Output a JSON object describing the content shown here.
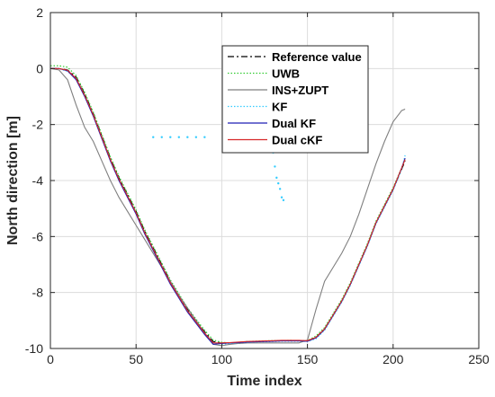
{
  "chart_data": {
    "type": "line",
    "title": "",
    "xlabel": "Time index",
    "ylabel": "North direction [m]",
    "xlim": [
      0,
      250
    ],
    "ylim": [
      -10,
      2
    ],
    "xticks": [
      0,
      50,
      100,
      150,
      200,
      250
    ],
    "yticks": [
      -10,
      -8,
      -6,
      -4,
      -2,
      0,
      2
    ],
    "grid": true,
    "legend_position": "top-right",
    "series": [
      {
        "name": "Reference value",
        "color": "#000000",
        "style": "dashdot",
        "x": [
          0,
          5,
          10,
          15,
          20,
          25,
          30,
          35,
          40,
          45,
          50,
          55,
          60,
          65,
          70,
          75,
          80,
          85,
          90,
          95,
          100,
          105,
          110,
          115,
          120,
          125,
          130,
          135,
          140,
          145,
          150,
          155,
          160,
          165,
          170,
          175,
          180,
          185,
          190,
          195,
          200,
          205,
          207
        ],
        "y": [
          0.0,
          0.0,
          -0.05,
          -0.3,
          -0.9,
          -1.6,
          -2.4,
          -3.2,
          -3.9,
          -4.5,
          -5.1,
          -5.8,
          -6.4,
          -7.0,
          -7.6,
          -8.1,
          -8.6,
          -9.0,
          -9.4,
          -9.75,
          -9.8,
          -9.8,
          -9.78,
          -9.76,
          -9.75,
          -9.74,
          -9.73,
          -9.72,
          -9.72,
          -9.72,
          -9.73,
          -9.6,
          -9.3,
          -8.8,
          -8.3,
          -7.7,
          -7.0,
          -6.3,
          -5.5,
          -4.9,
          -4.3,
          -3.6,
          -3.3
        ]
      },
      {
        "name": "UWB",
        "color": "#33cc33",
        "style": "dotted",
        "x": [
          0,
          5,
          10,
          15,
          20,
          25,
          30,
          35,
          40,
          45,
          50,
          55,
          60,
          65,
          70,
          75,
          80,
          85,
          90,
          95,
          100,
          105,
          110,
          115,
          120,
          125,
          130,
          135,
          140,
          145,
          150,
          155,
          160,
          165,
          170,
          175,
          180,
          185,
          190,
          195,
          200,
          205,
          207
        ],
        "y": [
          0.1,
          0.1,
          0.05,
          -0.25,
          -0.85,
          -1.55,
          -2.35,
          -3.15,
          -3.85,
          -4.45,
          -5.05,
          -5.75,
          -6.35,
          -6.95,
          -7.55,
          -8.05,
          -8.55,
          -8.95,
          -9.35,
          -9.7,
          -9.78,
          -9.8,
          -9.78,
          -9.75,
          -9.74,
          -9.73,
          -9.72,
          -9.72,
          -9.71,
          -9.72,
          -9.72,
          -9.55,
          -9.25,
          -8.75,
          -8.25,
          -7.65,
          -6.95,
          -6.25,
          -5.45,
          -4.85,
          -4.25,
          -3.55,
          -3.25
        ]
      },
      {
        "name": "INS+ZUPT",
        "color": "#7f7f7f",
        "style": "solid",
        "x": [
          0,
          5,
          10,
          15,
          20,
          25,
          30,
          35,
          40,
          45,
          50,
          55,
          60,
          65,
          70,
          75,
          80,
          85,
          90,
          95,
          100,
          105,
          110,
          115,
          120,
          125,
          130,
          135,
          140,
          145,
          150,
          155,
          160,
          165,
          170,
          175,
          180,
          185,
          190,
          195,
          200,
          205,
          207
        ],
        "y": [
          0.0,
          -0.05,
          -0.4,
          -1.3,
          -2.1,
          -2.6,
          -3.3,
          -4.0,
          -4.6,
          -5.1,
          -5.6,
          -6.1,
          -6.6,
          -7.1,
          -7.6,
          -8.1,
          -8.55,
          -9.0,
          -9.45,
          -9.85,
          -9.9,
          -9.85,
          -9.82,
          -9.8,
          -9.8,
          -9.8,
          -9.8,
          -9.8,
          -9.8,
          -9.8,
          -9.7,
          -8.6,
          -7.6,
          -7.1,
          -6.6,
          -6.0,
          -5.2,
          -4.3,
          -3.4,
          -2.6,
          -1.9,
          -1.5,
          -1.45
        ]
      },
      {
        "name": "KF",
        "color": "#33ccff",
        "style": "dotted",
        "x": [
          0,
          5,
          10,
          15,
          20,
          25,
          30,
          35,
          40,
          45,
          50,
          55,
          60,
          65,
          70,
          75,
          80,
          85,
          90,
          95,
          100,
          105,
          110,
          115,
          120,
          125,
          130,
          135,
          140,
          145,
          150,
          155,
          160,
          165,
          170,
          175,
          180,
          185,
          190,
          195,
          200,
          205,
          207
        ],
        "y": [
          0.0,
          0.0,
          -0.1,
          -0.35,
          -0.95,
          -1.65,
          -2.45,
          -3.25,
          -3.95,
          -4.55,
          -5.15,
          -5.85,
          -6.45,
          -7.05,
          -7.65,
          -8.15,
          -8.65,
          -9.05,
          -9.45,
          -9.8,
          -9.85,
          -9.82,
          -9.8,
          -9.78,
          -9.77,
          -9.76,
          -9.75,
          -9.74,
          -9.74,
          -9.74,
          -9.75,
          -9.65,
          -9.35,
          -8.85,
          -8.35,
          -7.75,
          -7.05,
          -6.35,
          -5.55,
          -4.95,
          -4.35,
          -3.6,
          -3.1
        ]
      },
      {
        "name": "Dual KF",
        "color": "#1f1fb4",
        "style": "solid",
        "x": [
          0,
          5,
          10,
          15,
          20,
          25,
          30,
          35,
          40,
          45,
          50,
          55,
          60,
          65,
          70,
          75,
          80,
          85,
          90,
          95,
          100,
          105,
          110,
          115,
          120,
          125,
          130,
          135,
          140,
          145,
          150,
          155,
          160,
          165,
          170,
          175,
          180,
          185,
          190,
          195,
          200,
          205,
          207
        ],
        "y": [
          0.0,
          0.0,
          -0.08,
          -0.4,
          -1.0,
          -1.7,
          -2.5,
          -3.3,
          -4.0,
          -4.6,
          -5.2,
          -5.9,
          -6.5,
          -7.1,
          -7.7,
          -8.2,
          -8.7,
          -9.1,
          -9.5,
          -9.85,
          -9.82,
          -9.8,
          -9.79,
          -9.77,
          -9.76,
          -9.75,
          -9.74,
          -9.73,
          -9.73,
          -9.73,
          -9.74,
          -9.62,
          -9.32,
          -8.82,
          -8.32,
          -7.72,
          -7.02,
          -6.32,
          -5.52,
          -4.92,
          -4.32,
          -3.55,
          -3.2
        ]
      },
      {
        "name": "Dual cKF",
        "color": "#d62728",
        "style": "solid",
        "x": [
          0,
          5,
          10,
          15,
          20,
          25,
          30,
          35,
          40,
          45,
          50,
          55,
          60,
          65,
          70,
          75,
          80,
          85,
          90,
          95,
          100,
          105,
          110,
          115,
          120,
          125,
          130,
          135,
          140,
          145,
          150,
          155,
          160,
          165,
          170,
          175,
          180,
          185,
          190,
          195,
          200,
          205,
          207
        ],
        "y": [
          0.0,
          0.0,
          -0.06,
          -0.35,
          -0.95,
          -1.65,
          -2.45,
          -3.25,
          -3.95,
          -4.55,
          -5.15,
          -5.85,
          -6.45,
          -7.05,
          -7.65,
          -8.15,
          -8.65,
          -9.05,
          -9.45,
          -9.8,
          -9.8,
          -9.79,
          -9.77,
          -9.75,
          -9.74,
          -9.73,
          -9.72,
          -9.71,
          -9.71,
          -9.71,
          -9.72,
          -9.6,
          -9.3,
          -8.8,
          -8.3,
          -7.7,
          -7.0,
          -6.3,
          -5.5,
          -4.9,
          -4.3,
          -3.55,
          -3.25
        ]
      },
      {
        "name": "",
        "color": "#33ccff",
        "style": "scatter",
        "x": [
          60,
          65,
          70,
          75,
          80,
          85,
          90,
          130,
          131,
          132,
          133,
          134,
          135,
          136
        ],
        "y": [
          -2.45,
          -2.45,
          -2.45,
          -2.45,
          -2.45,
          -2.45,
          -2.45,
          -3.0,
          -3.5,
          -3.9,
          -4.1,
          -4.3,
          -4.6,
          -4.7
        ]
      }
    ]
  }
}
